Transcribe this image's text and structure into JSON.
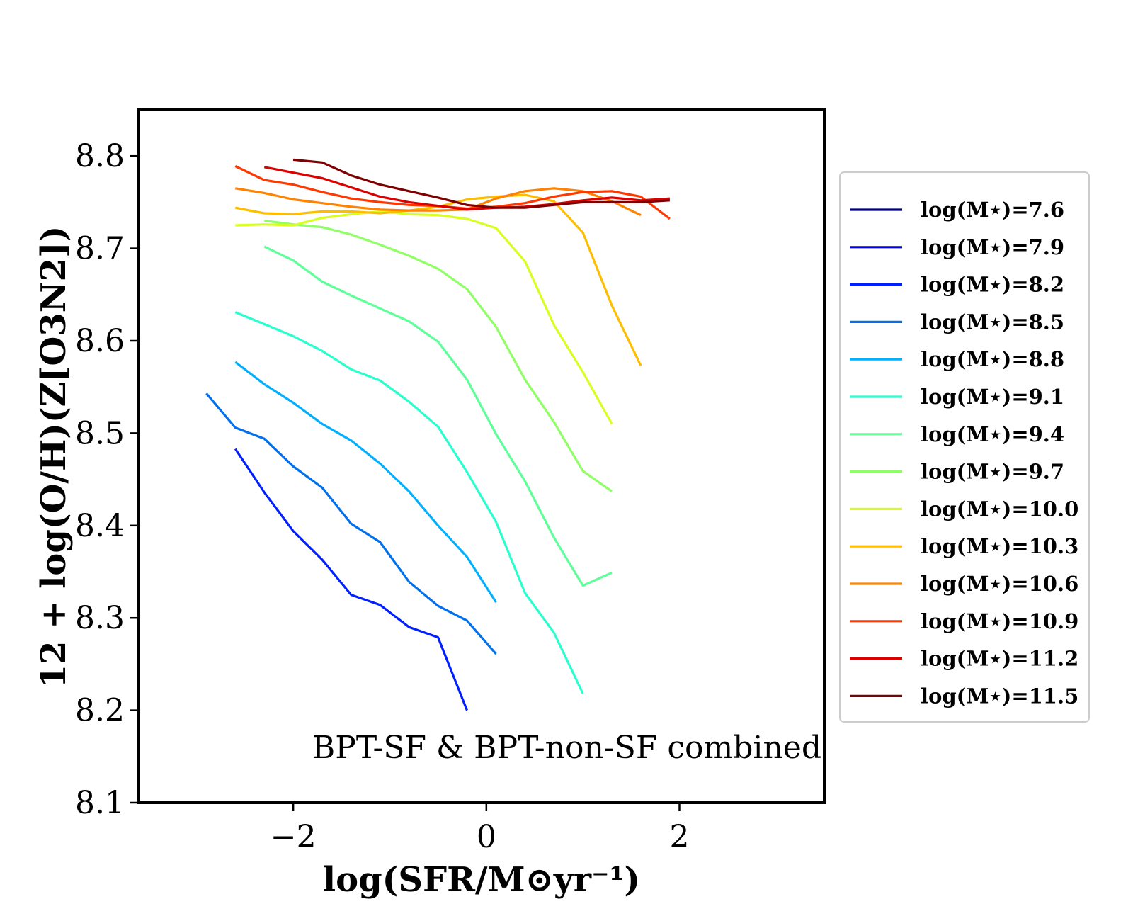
{
  "chart_data": {
    "type": "line",
    "title": "",
    "xlabel": "log(SFR/M⊙yr⁻¹)",
    "ylabel": "12 + log(O/H)(Z[O3N2])",
    "xlim": [
      -3.6,
      3.5
    ],
    "ylim": [
      8.1,
      8.85
    ],
    "xticks": [
      -2,
      0,
      2
    ],
    "xtick_labels": [
      "−2",
      "0",
      "2"
    ],
    "yticks": [
      8.1,
      8.2,
      8.3,
      8.4,
      8.5,
      8.6,
      8.7,
      8.8
    ],
    "ytick_labels": [
      "8.1",
      "8.2",
      "8.3",
      "8.4",
      "8.5",
      "8.6",
      "8.7",
      "8.8"
    ],
    "annotation": "BPT-SF & BPT-non-SF combined",
    "legend_position": "outside-right",
    "series": [
      {
        "name": "log(M⋆)=7.6",
        "color": "#00007f",
        "x": [],
        "y": []
      },
      {
        "name": "log(M⋆)=7.9",
        "color": "#0000dd",
        "x": [],
        "y": []
      },
      {
        "name": "log(M⋆)=8.2",
        "color": "#0020ff",
        "x": [
          -2.6,
          -2.3,
          -2.0,
          -1.7,
          -1.4,
          -1.1,
          -0.8,
          -0.5,
          -0.2
        ],
        "y": [
          8.483,
          8.436,
          8.394,
          8.363,
          8.325,
          8.314,
          8.29,
          8.279,
          8.2
        ]
      },
      {
        "name": "log(M⋆)=8.5",
        "color": "#0070ee",
        "x": [
          -2.9,
          -2.6,
          -2.3,
          -2.0,
          -1.7,
          -1.4,
          -1.1,
          -0.8,
          -0.5,
          -0.2,
          0.1
        ],
        "y": [
          8.543,
          8.506,
          8.494,
          8.464,
          8.441,
          8.402,
          8.382,
          8.339,
          8.313,
          8.297,
          8.261
        ]
      },
      {
        "name": "log(M⋆)=8.8",
        "color": "#00b0ff",
        "x": [
          -2.6,
          -2.3,
          -2.0,
          -1.7,
          -1.4,
          -1.1,
          -0.8,
          -0.5,
          -0.2,
          0.1
        ],
        "y": [
          8.577,
          8.553,
          8.533,
          8.51,
          8.492,
          8.467,
          8.437,
          8.4,
          8.366,
          8.317
        ]
      },
      {
        "name": "log(M⋆)=9.1",
        "color": "#29ffce",
        "x": [
          -2.6,
          -2.3,
          -2.0,
          -1.7,
          -1.4,
          -1.1,
          -0.8,
          -0.5,
          -0.2,
          0.1,
          0.4,
          0.7,
          1.0
        ],
        "y": [
          8.631,
          8.618,
          8.605,
          8.589,
          8.569,
          8.557,
          8.534,
          8.507,
          8.458,
          8.404,
          8.327,
          8.284,
          8.218
        ]
      },
      {
        "name": "log(M⋆)=9.4",
        "color": "#5dff99",
        "x": [
          -2.3,
          -2.0,
          -1.7,
          -1.4,
          -1.1,
          -0.8,
          -0.5,
          -0.2,
          0.1,
          0.4,
          0.7,
          1.0,
          1.3
        ],
        "y": [
          8.702,
          8.687,
          8.664,
          8.649,
          8.635,
          8.621,
          8.599,
          8.558,
          8.499,
          8.448,
          8.387,
          8.335,
          8.349
        ]
      },
      {
        "name": "log(M⋆)=9.7",
        "color": "#90ff66",
        "x": [
          -2.3,
          -2.0,
          -1.7,
          -1.4,
          -1.1,
          -0.8,
          -0.5,
          -0.2,
          0.1,
          0.4,
          0.7,
          1.0,
          1.3
        ],
        "y": [
          8.73,
          8.726,
          8.723,
          8.715,
          8.704,
          8.692,
          8.678,
          8.656,
          8.615,
          8.558,
          8.512,
          8.459,
          8.437
        ]
      },
      {
        "name": "log(M⋆)=10.0",
        "color": "#d7ff1f",
        "x": [
          -2.6,
          -2.3,
          -2.0,
          -1.7,
          -1.4,
          -1.1,
          -0.8,
          -0.5,
          -0.2,
          0.1,
          0.4,
          0.7,
          1.0,
          1.3
        ],
        "y": [
          8.725,
          8.726,
          8.725,
          8.733,
          8.737,
          8.74,
          8.737,
          8.736,
          8.732,
          8.722,
          8.686,
          8.617,
          8.566,
          8.51
        ]
      },
      {
        "name": "log(M⋆)=10.3",
        "color": "#ffbd00",
        "x": [
          -2.6,
          -2.3,
          -2.0,
          -1.7,
          -1.4,
          -1.1,
          -0.8,
          -0.5,
          -0.2,
          0.1,
          0.4,
          0.7,
          1.0,
          1.3,
          1.6
        ],
        "y": [
          8.744,
          8.738,
          8.737,
          8.74,
          8.74,
          8.738,
          8.741,
          8.745,
          8.753,
          8.756,
          8.758,
          8.751,
          8.717,
          8.638,
          8.573
        ]
      },
      {
        "name": "log(M⋆)=10.6",
        "color": "#ff8200",
        "x": [
          -2.6,
          -2.3,
          -2.0,
          -1.7,
          -1.4,
          -1.1,
          -0.8,
          -0.5,
          -0.2,
          0.1,
          0.4,
          0.7,
          1.0,
          1.3,
          1.6
        ],
        "y": [
          8.765,
          8.76,
          8.753,
          8.749,
          8.745,
          8.742,
          8.741,
          8.741,
          8.742,
          8.754,
          8.762,
          8.765,
          8.762,
          8.751,
          8.736
        ]
      },
      {
        "name": "log(M⋆)=10.9",
        "color": "#ff3800",
        "x": [
          -2.6,
          -2.3,
          -2.0,
          -1.7,
          -1.4,
          -1.1,
          -0.8,
          -0.5,
          -0.2,
          0.1,
          0.4,
          0.7,
          1.0,
          1.3,
          1.6,
          1.9
        ],
        "y": [
          8.789,
          8.774,
          8.769,
          8.761,
          8.754,
          8.75,
          8.747,
          8.746,
          8.743,
          8.745,
          8.749,
          8.756,
          8.761,
          8.762,
          8.756,
          8.732
        ]
      },
      {
        "name": "log(M⋆)=11.2",
        "color": "#dd0000",
        "x": [
          -2.3,
          -2.0,
          -1.7,
          -1.4,
          -1.1,
          -0.8,
          -0.5,
          -0.2,
          0.1,
          0.4,
          0.7,
          1.0,
          1.3,
          1.6,
          1.9
        ],
        "y": [
          8.788,
          8.782,
          8.776,
          8.766,
          8.756,
          8.75,
          8.746,
          8.742,
          8.744,
          8.745,
          8.748,
          8.752,
          8.755,
          8.752,
          8.754
        ]
      },
      {
        "name": "log(M⋆)=11.5",
        "color": "#7f0000",
        "x": [
          -2.0,
          -1.7,
          -1.4,
          -1.1,
          -0.8,
          -0.5,
          -0.2,
          0.1,
          0.4,
          0.7,
          1.0,
          1.3,
          1.6,
          1.9
        ],
        "y": [
          8.796,
          8.793,
          8.779,
          8.769,
          8.762,
          8.755,
          8.747,
          8.744,
          8.744,
          8.747,
          8.75,
          8.75,
          8.75,
          8.752
        ]
      }
    ]
  }
}
